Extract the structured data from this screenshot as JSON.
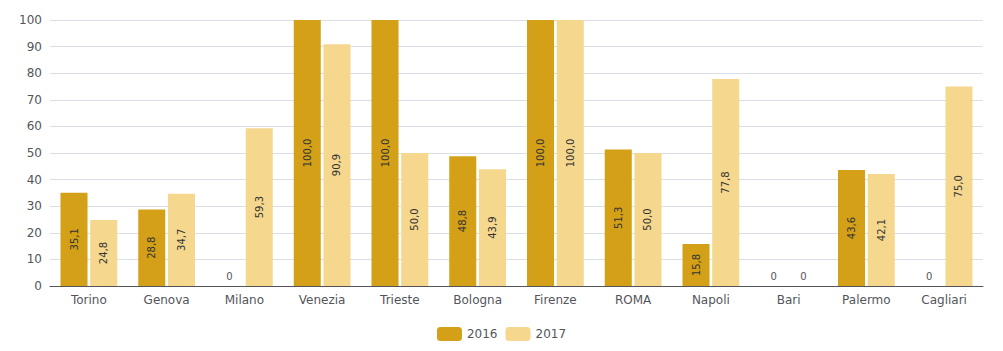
{
  "chart_data": {
    "type": "bar",
    "categories": [
      "Torino",
      "Genova",
      "Milano",
      "Venezia",
      "Trieste",
      "Bologna",
      "Firenze",
      "ROMA",
      "Napoli",
      "Bari",
      "Palermo",
      "Cagliari"
    ],
    "series": [
      {
        "name": "2016",
        "color": "#D4A017",
        "values": [
          35.1,
          28.8,
          0,
          100.0,
          100.0,
          48.8,
          100.0,
          51.3,
          15.8,
          0,
          43.6,
          0
        ],
        "value_labels": [
          "35,1",
          "28,8",
          "0",
          "100,0",
          "100,0",
          "48,8",
          "100,0",
          "51,3",
          "15,8",
          "0",
          "43,6",
          "0"
        ]
      },
      {
        "name": "2017",
        "color": "#F5D78E",
        "values": [
          24.8,
          34.7,
          59.3,
          90.9,
          50.0,
          43.9,
          100.0,
          50.0,
          77.8,
          0,
          42.1,
          75.0
        ],
        "value_labels": [
          "24,8",
          "34,7",
          "59,3",
          "90,9",
          "50,0",
          "43,9",
          "100,0",
          "50,0",
          "77,8",
          "0",
          "42,1",
          "75,0"
        ]
      }
    ],
    "ylim": [
      0,
      100
    ],
    "yticks": [
      0,
      10,
      20,
      30,
      40,
      50,
      60,
      70,
      80,
      90,
      100
    ],
    "grid": true,
    "legend": "bottom",
    "data_labels": true
  }
}
